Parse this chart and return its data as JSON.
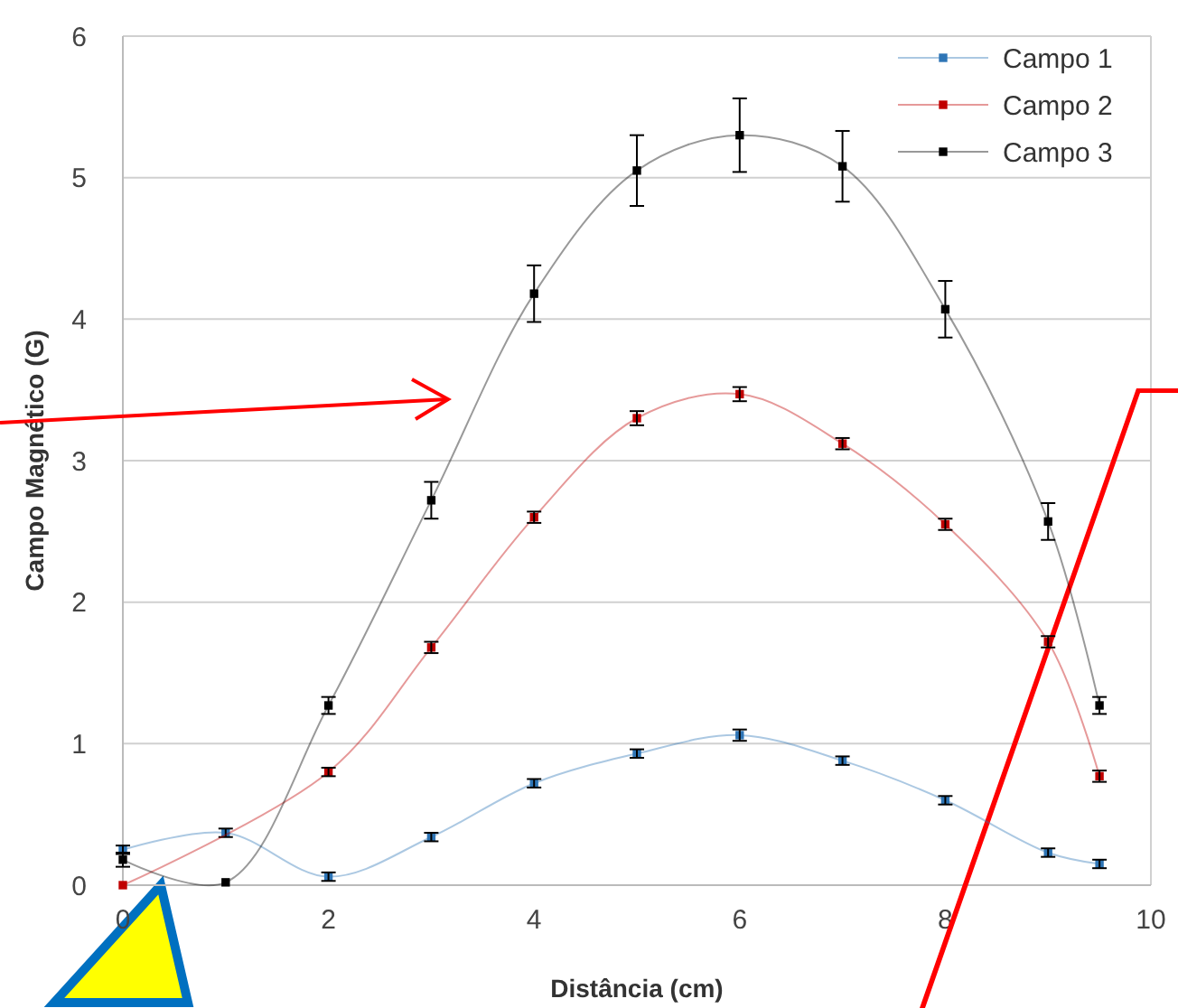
{
  "chart_data": {
    "type": "line",
    "xlabel": "Distância (cm)",
    "ylabel": "Campo Magnético (G)",
    "x": [
      0,
      1,
      2,
      3,
      4,
      5,
      6,
      7,
      8,
      9,
      9.5
    ],
    "xlim": [
      0,
      10
    ],
    "xticks": [
      0,
      2,
      4,
      6,
      8,
      10
    ],
    "ylim": [
      0,
      6
    ],
    "yticks": [
      0,
      1,
      2,
      3,
      4,
      5,
      6
    ],
    "grid": "y",
    "legend": "top right",
    "marker": "square",
    "series": [
      {
        "name": "Campo 1",
        "color": "#2e75b6",
        "values": [
          0.25,
          0.37,
          0.06,
          0.34,
          0.72,
          0.93,
          1.06,
          0.88,
          0.6,
          0.23,
          0.15
        ],
        "errors": [
          0.03,
          0.03,
          0.03,
          0.03,
          0.03,
          0.03,
          0.04,
          0.03,
          0.03,
          0.03,
          0.03
        ]
      },
      {
        "name": "Campo 2",
        "color": "#c00000",
        "values": [
          0,
          null,
          0.8,
          1.68,
          2.6,
          3.3,
          3.47,
          3.12,
          2.55,
          1.72,
          0.77
        ],
        "errors": [
          null,
          null,
          0.03,
          0.04,
          0.04,
          0.05,
          0.05,
          0.04,
          0.04,
          0.04,
          0.04
        ]
      },
      {
        "name": "Campo 3",
        "color": "#000000",
        "values": [
          0.18,
          0.02,
          1.27,
          2.72,
          4.18,
          5.05,
          5.3,
          5.08,
          4.07,
          2.57,
          1.27
        ],
        "errors": [
          0.05,
          null,
          0.06,
          0.13,
          0.2,
          0.25,
          0.26,
          0.25,
          0.2,
          0.13,
          0.06
        ]
      }
    ]
  }
}
